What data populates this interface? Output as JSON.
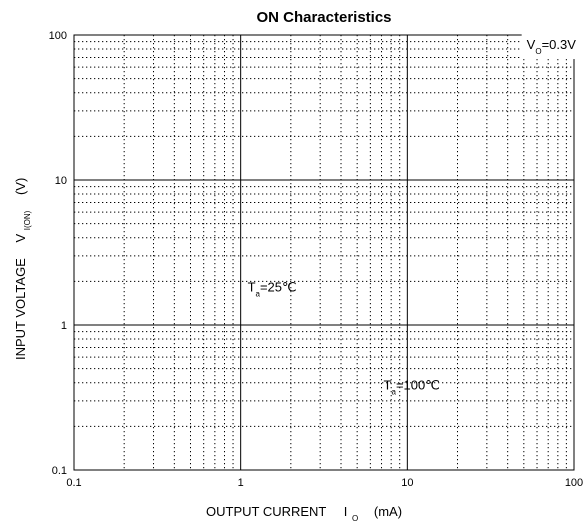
{
  "chart_data": {
    "type": "line",
    "title": "ON Characteristics",
    "xscale": "log",
    "yscale": "log",
    "xlim": [
      0.1,
      100
    ],
    "ylim": [
      0.1,
      100
    ],
    "x_ticks": [
      "0.1",
      "1",
      "10",
      "100"
    ],
    "y_ticks": [
      "0.1",
      "1",
      "10",
      "100"
    ],
    "xlabel": {
      "main": "OUTPUT CURRENT",
      "symbol": "I",
      "subscript": "O",
      "unit": "(mA)"
    },
    "ylabel": {
      "main": "INPUT VOLTAGE",
      "symbol": "V",
      "subscript": "I(ON)",
      "unit": "(V)"
    },
    "grid": {
      "major": true,
      "minor": true,
      "minor_style": "dotted"
    },
    "series": [],
    "annotations": [
      {
        "id": "vo",
        "base": "V",
        "sub": "O",
        "rest": "=0.3V",
        "x": 52,
        "y": 80,
        "box": true
      },
      {
        "id": "ta25",
        "base": "T",
        "sub": "a",
        "rest": "=25℃",
        "x": 1.1,
        "y": 1.7,
        "box": false
      },
      {
        "id": "ta100",
        "base": "T",
        "sub": "a",
        "rest": "=100℃",
        "x": 7.2,
        "y": 0.36,
        "box": false
      }
    ]
  }
}
